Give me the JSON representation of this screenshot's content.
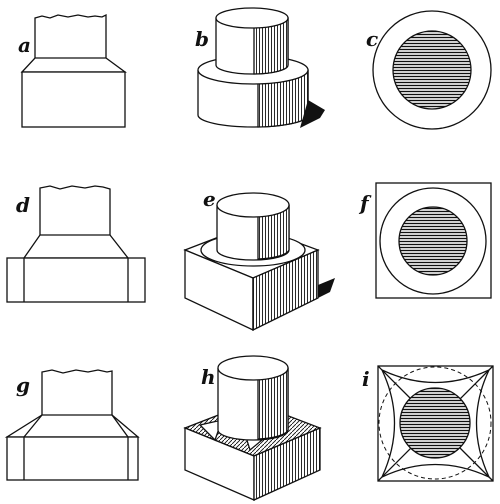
{
  "figure_labels": {
    "a": "a",
    "b": "b",
    "c": "c",
    "d": "d",
    "e": "e",
    "f": "f",
    "g": "g",
    "h": "h",
    "i": "i"
  }
}
